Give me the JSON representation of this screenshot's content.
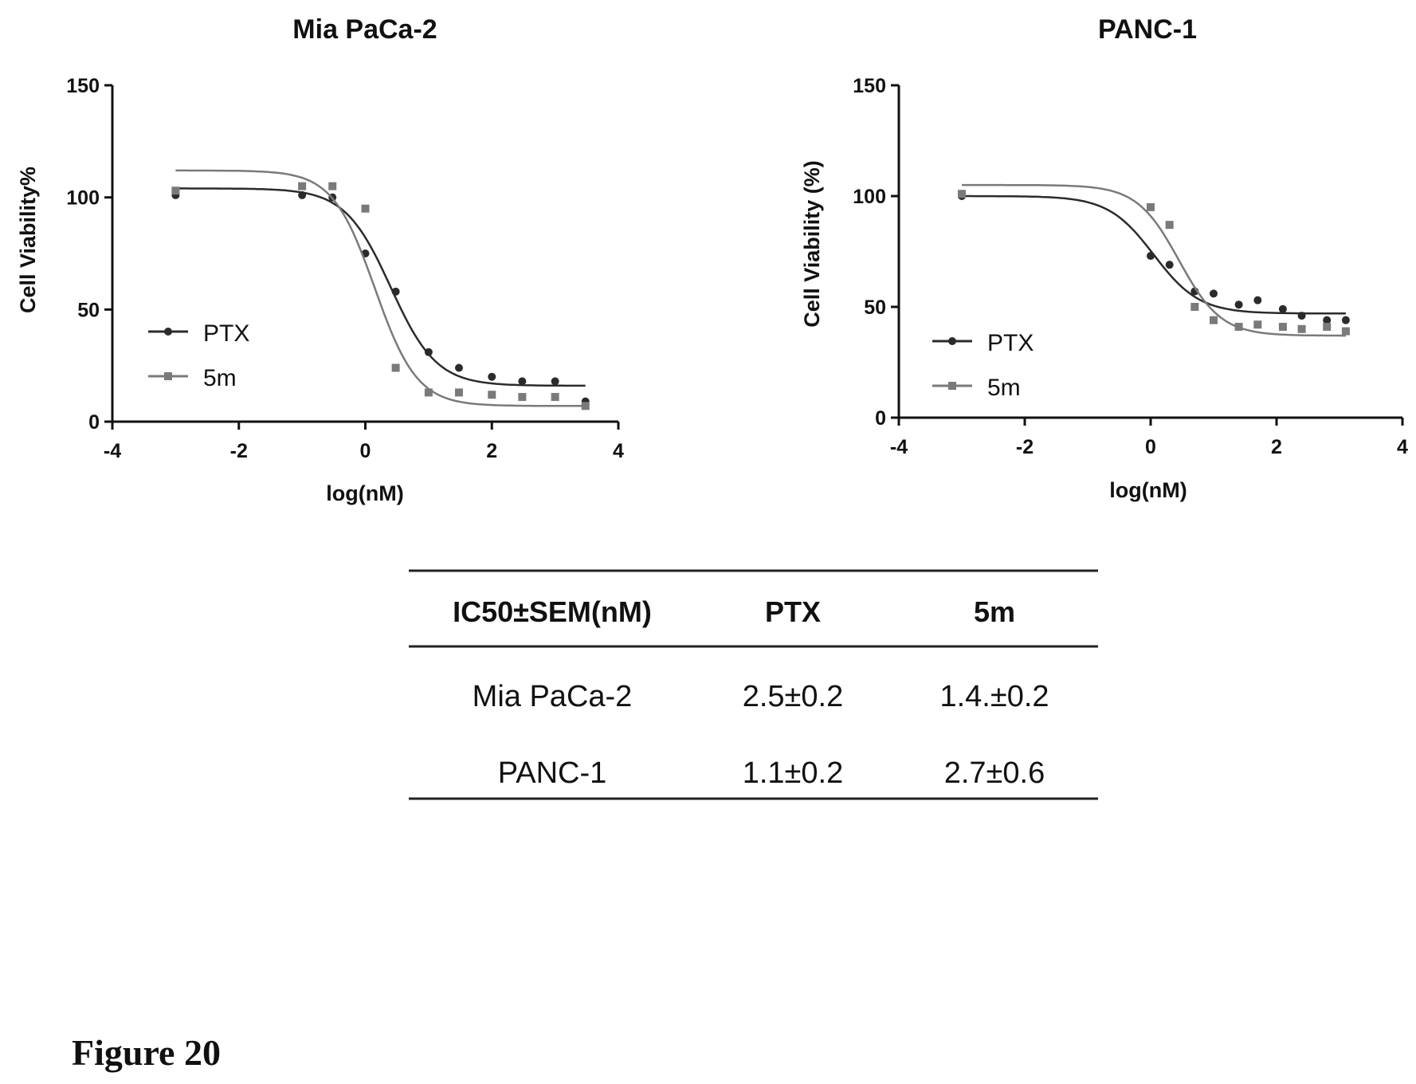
{
  "chart_data": [
    {
      "type": "scatter",
      "title": "Mia PaCa-2",
      "xlabel": "log(nM)",
      "ylabel": "Cell Viability%",
      "xlim": [
        -4,
        4
      ],
      "ylim": [
        0,
        150
      ],
      "xticks": [
        -4,
        -2,
        0,
        2,
        4
      ],
      "yticks": [
        0,
        50,
        100,
        150
      ],
      "legend": "left-middle",
      "series": [
        {
          "name": "PTX",
          "marker": "circle",
          "color": "#2b2b2b",
          "x": [
            -3,
            -1,
            -0.52,
            0,
            0.48,
            1,
            1.48,
            2,
            2.48,
            3,
            3.48
          ],
          "y": [
            101,
            101,
            100,
            75,
            58,
            31,
            24,
            20,
            18,
            18,
            9
          ],
          "fit": {
            "top": 104,
            "bottom": 16,
            "logIC50": 0.4,
            "hill": 1.2
          }
        },
        {
          "name": "5m",
          "marker": "square",
          "color": "#7a7a7a",
          "x": [
            -3,
            -1,
            -0.52,
            0,
            0.48,
            1,
            1.48,
            2,
            2.48,
            3,
            3.48
          ],
          "y": [
            103,
            105,
            105,
            95,
            24,
            13,
            13,
            12,
            11,
            11,
            7
          ],
          "fit": {
            "top": 112,
            "bottom": 7,
            "logIC50": 0.15,
            "hill": 1.3
          }
        }
      ]
    },
    {
      "type": "scatter",
      "title": "PANC-1",
      "xlabel": "log(nM)",
      "ylabel": "Cell Viability (%)",
      "xlim": [
        -4,
        4
      ],
      "ylim": [
        0,
        150
      ],
      "xticks": [
        -4,
        -2,
        0,
        2,
        4
      ],
      "yticks": [
        0,
        50,
        100,
        150
      ],
      "legend": "left-middle",
      "series": [
        {
          "name": "PTX",
          "marker": "circle",
          "color": "#2b2b2b",
          "x": [
            -3,
            0,
            0.3,
            0.7,
            1,
            1.4,
            1.7,
            2.1,
            2.4,
            2.8,
            3.1
          ],
          "y": [
            100,
            73,
            69,
            57,
            56,
            51,
            53,
            49,
            46,
            44,
            44
          ],
          "fit": {
            "top": 100,
            "bottom": 47,
            "logIC50": 0.05,
            "hill": 1.2
          }
        },
        {
          "name": "5m",
          "marker": "square",
          "color": "#7a7a7a",
          "x": [
            -3,
            0,
            0.3,
            0.7,
            1,
            1.4,
            1.7,
            2.1,
            2.4,
            2.8,
            3.1
          ],
          "y": [
            101,
            95,
            87,
            50,
            44,
            41,
            42,
            41,
            40,
            41,
            39
          ],
          "fit": {
            "top": 105,
            "bottom": 37,
            "logIC50": 0.45,
            "hill": 1.3
          }
        }
      ]
    }
  ],
  "table": {
    "headers": [
      "IC50±SEM(nM)",
      "PTX",
      "5m"
    ],
    "rows": [
      [
        "Mia PaCa-2",
        "2.5±0.2",
        "1.4.±0.2"
      ],
      [
        "PANC-1",
        "1.1±0.2",
        "2.7±0.6"
      ]
    ]
  },
  "caption": "Figure 20"
}
